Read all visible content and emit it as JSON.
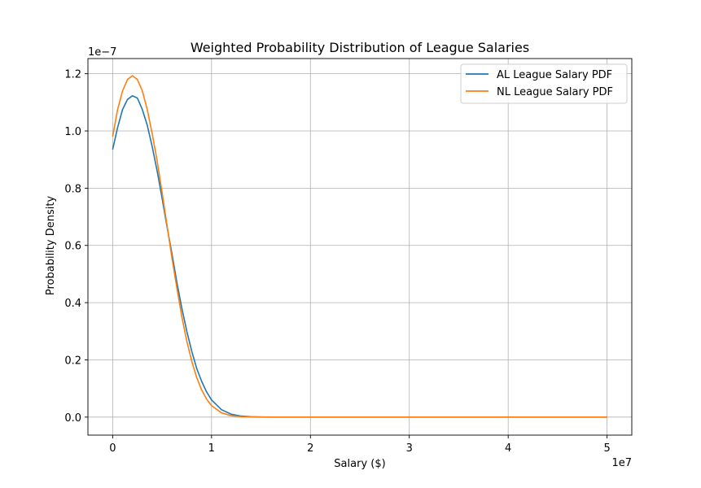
{
  "chart_data": {
    "type": "line",
    "title": "Weighted Probability Distribution of League Salaries",
    "xlabel": "Salary ($)",
    "ylabel": "Probability Density",
    "x_offset_text": "1e7",
    "y_offset_text": "1e−7",
    "xlim": [
      -2500000,
      52500000
    ],
    "ylim": [
      -6.3e-09,
      1.253e-07
    ],
    "x_ticks": [
      0,
      10000000,
      20000000,
      30000000,
      40000000,
      50000000
    ],
    "x_tick_labels": [
      "0",
      "1",
      "2",
      "3",
      "4",
      "5"
    ],
    "y_ticks": [
      0,
      2e-08,
      4e-08,
      6e-08,
      8e-08,
      1e-07,
      1.2e-07
    ],
    "y_tick_labels": [
      "0.0",
      "0.2",
      "0.4",
      "0.6",
      "0.8",
      "1.0",
      "1.2"
    ],
    "grid": true,
    "legend_position": "top-right",
    "x": [
      0,
      500000,
      1000000,
      1500000,
      2000000,
      2500000,
      3000000,
      3500000,
      4000000,
      4500000,
      5000000,
      5500000,
      6000000,
      6500000,
      7000000,
      7500000,
      8000000,
      8500000,
      9000000,
      9500000,
      10000000,
      11000000,
      12000000,
      13000000,
      14000000,
      15000000,
      16000000,
      18000000,
      20000000,
      25000000,
      30000000,
      35000000,
      40000000,
      45000000,
      50000000
    ],
    "series": [
      {
        "name": "AL League Salary PDF",
        "color": "#1f77b4",
        "values": [
          9.35e-08,
          1.012e-07,
          1.075e-07,
          1.11e-07,
          1.123e-07,
          1.115e-07,
          1.075e-07,
          1.02e-07,
          9.45e-08,
          8.6e-08,
          7.65e-08,
          6.65e-08,
          5.7e-08,
          4.7e-08,
          3.8e-08,
          3e-08,
          2.3e-08,
          1.7e-08,
          1.25e-08,
          8.8e-09,
          6e-09,
          2.6e-09,
          1e-09,
          3.5e-10,
          1.1e-10,
          3e-11,
          8e-12,
          0,
          0,
          0,
          0,
          0,
          0,
          0,
          0
        ]
      },
      {
        "name": "NL League Salary PDF",
        "color": "#ff7f0e",
        "values": [
          9.8e-08,
          1.075e-07,
          1.14e-07,
          1.18e-07,
          1.193e-07,
          1.18e-07,
          1.14e-07,
          1.075e-07,
          9.9e-08,
          8.95e-08,
          7.85e-08,
          6.7e-08,
          5.55e-08,
          4.5e-08,
          3.5e-08,
          2.65e-08,
          1.95e-08,
          1.38e-08,
          9.5e-09,
          6.3e-09,
          4e-09,
          1.5e-09,
          5e-10,
          1.4e-10,
          4e-11,
          1e-11,
          2e-12,
          0,
          0,
          0,
          0,
          0,
          0,
          0,
          0
        ]
      }
    ]
  }
}
